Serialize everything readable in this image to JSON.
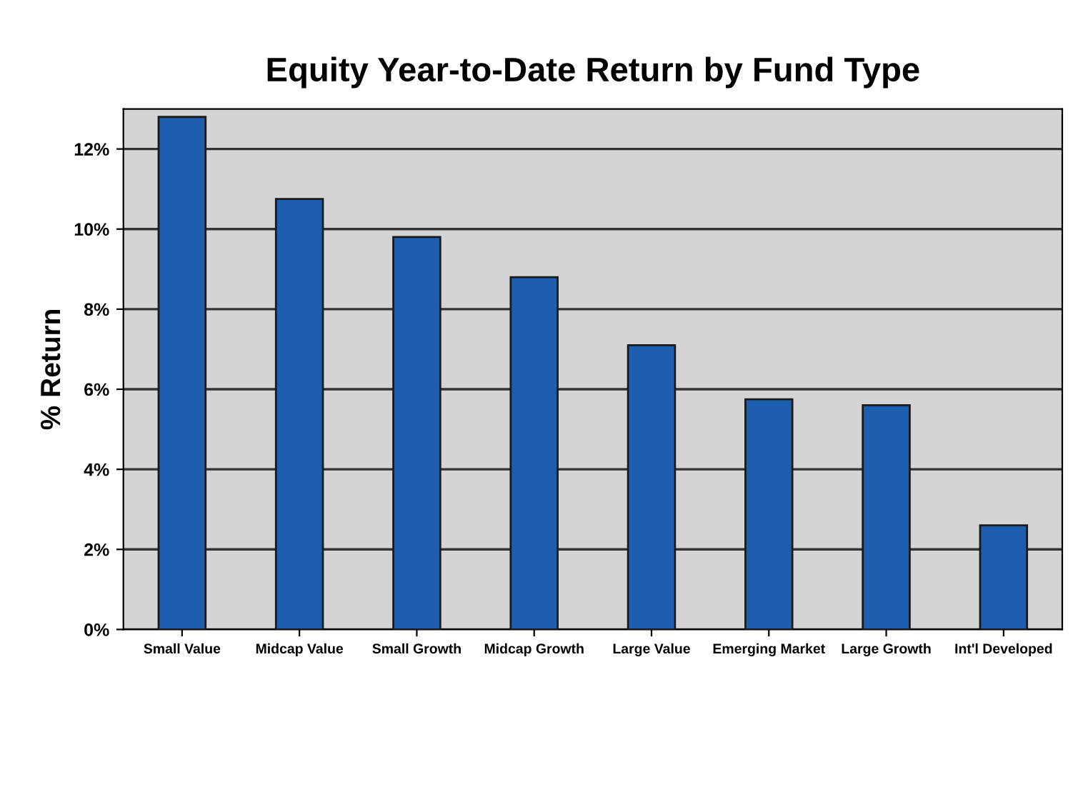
{
  "chart_data": {
    "type": "bar",
    "title": "Equity Year-to-Date Return by Fund Type",
    "ylabel": "% Return",
    "categories": [
      "Small Value",
      "Midcap Value",
      "Small Growth",
      "Midcap Growth",
      "Large Value",
      "Emerging Market",
      "Large Growth",
      "Int'l Developed"
    ],
    "values": [
      12.8,
      10.75,
      9.8,
      8.8,
      7.1,
      5.75,
      5.6,
      2.6
    ],
    "color": "#1d5fae",
    "ylim": [
      0,
      13
    ],
    "yticks": [
      {
        "value": 0,
        "label": "0%"
      },
      {
        "value": 2,
        "label": "2%"
      },
      {
        "value": 4,
        "label": "4%"
      },
      {
        "value": 6,
        "label": "6%"
      },
      {
        "value": 8,
        "label": "8%"
      },
      {
        "value": 10,
        "label": "10%"
      },
      {
        "value": 12,
        "label": "12%"
      }
    ],
    "grid": "y",
    "legend": false
  }
}
